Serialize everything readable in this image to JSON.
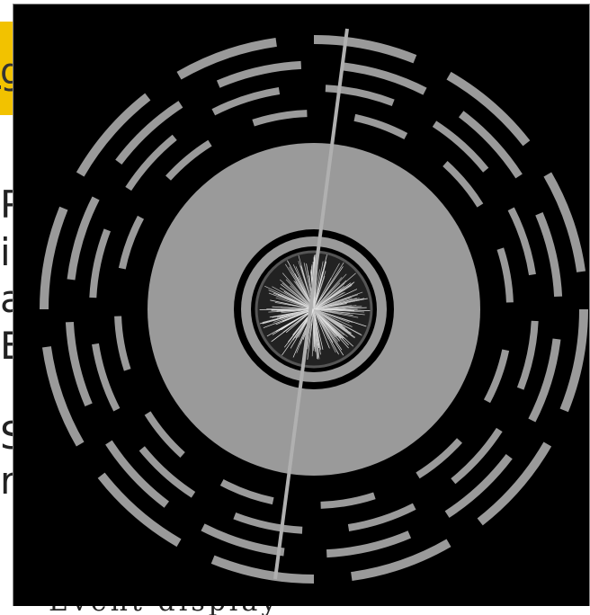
{
  "background_slide": {
    "title_fragment": "g",
    "text_fragments": [
      "P",
      "ir",
      "a",
      "E",
      "S",
      "r"
    ],
    "bottom_caption_fragment": "Event display"
  },
  "image": {
    "subject": "particle-detector-cross-section",
    "colors": {
      "background": "#000000",
      "detector_gray": "#9a9a9a",
      "highlight_title": "#f2c200"
    }
  }
}
